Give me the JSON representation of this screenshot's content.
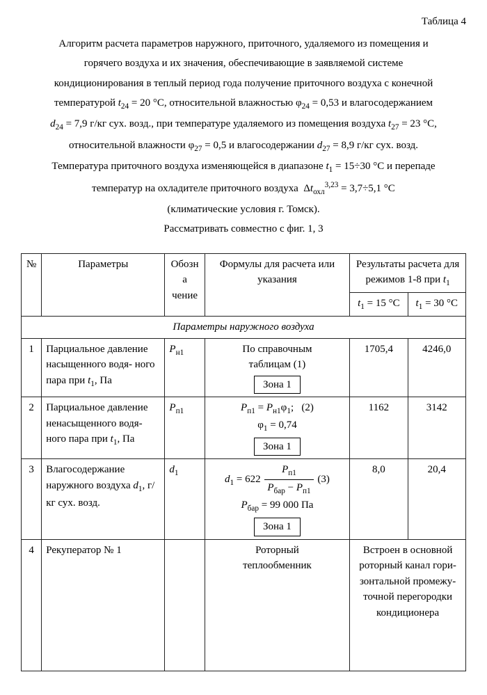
{
  "table_label": "Таблица 4",
  "intro_lines": [
    "Алгоритм расчета параметров наружного, приточного, удаляемого из помещения и",
    "горячего воздуха и их значения, обеспечивающие в заявляемой системе",
    "кондиционирования в теплый период года получение приточного воздуха с конечной",
    "температурой <i>t</i><sub>24</sub> = 20 °C, относительной влажностью φ<sub>24</sub> = 0,53 и влагосодержанием",
    "<i>d</i><sub>24</sub> = 7,9 г/кг сух. возд., при температуре удаляемого из помещения воздуха <i>t</i><sub>27</sub> = 23 °C,",
    "относительной влажности φ<sub>27</sub> = 0,5 и влагосодержании <i>d</i><sub>27</sub> = 8,9 г/кг сух. возд.",
    "Температура приточного воздуха изменяющейся в диапазоне <i>t</i><sub>1</sub> = 15÷30 °C и перепаде",
    "температур на охладителе приточного воздуха&nbsp; Δ<i>t</i><sub>охл</sub><sup>3,23</sup> = 3,7÷5,1 °C",
    "(климатические условия г. Томск).",
    "Рассматривать совместно с фиг. 1, 3"
  ],
  "headers": {
    "num": "№",
    "param": "Параметры",
    "sym": "Обозна чение",
    "formula": "Формулы для расчета или указания",
    "results": "Результаты расчета для режимов 1-8 при <i>t</i><sub>1</sub>",
    "r1": "<i>t</i><sub>1</sub> = 15 °C",
    "r2": "<i>t</i><sub>1</sub> = 30 °C"
  },
  "section": "Параметры наружного воздуха",
  "rows": [
    {
      "n": "1",
      "param": "Парциальное давление насыщенного водя- ного пара при <i>t</i><sub>1</sub>, Па",
      "sym": "<i>P</i><sub>н1</sub>",
      "formula": "По справочным<br>таблицам (1)<br><span class=\"zone-box\">Зона 1</span>",
      "r1": "1705,4",
      "r2": "4246,0"
    },
    {
      "n": "2",
      "param": "Парциальное давление ненасыщенного водя- ного пара при <i>t</i><sub>1</sub>, Па",
      "sym": "<i>P</i><sub>п1</sub>",
      "formula": "<i>P</i><sub>п1</sub> = <i>P</i><sub>н1</sub>φ<sub>1</sub>;&nbsp;&nbsp;&nbsp;(2)<br>φ<sub>1</sub> = 0,74<br><span class=\"zone-box\">Зона 1</span>",
      "r1": "1162",
      "r2": "3142"
    },
    {
      "n": "3",
      "param": "Влагосодержание наружного воздуха <i>d</i><sub>1</sub>, г/кг сух. возд.",
      "sym": "<i>d</i><sub>1</sub>",
      "formula": "<i>d</i><sub>1</sub> = 622 <span class=\"frac\"><span class=\"num\"><i>P</i><sub>п1</sub></span><span class=\"den\"><i>P</i><sub>бар</sub> − <i>P</i><sub>п1</sub></span></span> (3)<br><i>P</i><sub>бар</sub> = 99 000 Па<br><span class=\"zone-box\">Зона 1</span>",
      "r1": "8,0",
      "r2": "20,4"
    },
    {
      "n": "4",
      "param": "Рекуператор № 1",
      "sym": "",
      "formula": "Роторный<br>теплообменник",
      "merged_result": "Встроен в основной роторный канал гори- зонтальной промежу- точной перегородки кондиционера"
    }
  ],
  "colors": {
    "border": "#222222",
    "text": "#000000",
    "bg": "#ffffff"
  }
}
